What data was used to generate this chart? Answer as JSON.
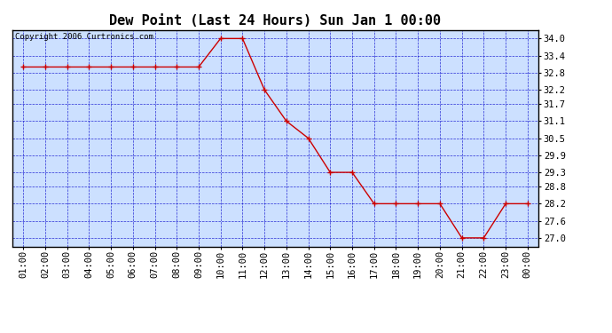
{
  "title": "Dew Point (Last 24 Hours) Sun Jan 1 00:00",
  "copyright": "Copyright 2006 Curtronics.com",
  "x_labels": [
    "01:00",
    "02:00",
    "03:00",
    "04:00",
    "05:00",
    "06:00",
    "07:00",
    "08:00",
    "09:00",
    "10:00",
    "11:00",
    "12:00",
    "13:00",
    "14:00",
    "15:00",
    "16:00",
    "17:00",
    "18:00",
    "19:00",
    "20:00",
    "21:00",
    "22:00",
    "23:00",
    "00:00"
  ],
  "y_values": [
    33.0,
    33.0,
    33.0,
    33.0,
    33.0,
    33.0,
    33.0,
    33.0,
    33.0,
    34.0,
    34.0,
    32.2,
    31.1,
    30.5,
    29.3,
    29.3,
    28.2,
    28.2,
    28.2,
    28.2,
    27.0,
    27.0,
    28.2,
    28.2
  ],
  "y_ticks": [
    27.0,
    27.6,
    28.2,
    28.8,
    29.3,
    29.9,
    30.5,
    31.1,
    31.7,
    32.2,
    32.8,
    33.4,
    34.0
  ],
  "ylim": [
    26.7,
    34.3
  ],
  "line_color": "#cc0000",
  "marker": "+",
  "marker_color": "#cc0000",
  "fig_bg_color": "#ffffff",
  "plot_bg": "#cce0ff",
  "grid_color": "#0000cc",
  "border_color": "#000000",
  "title_fontsize": 11,
  "copyright_fontsize": 6.5,
  "tick_fontsize": 7.5
}
